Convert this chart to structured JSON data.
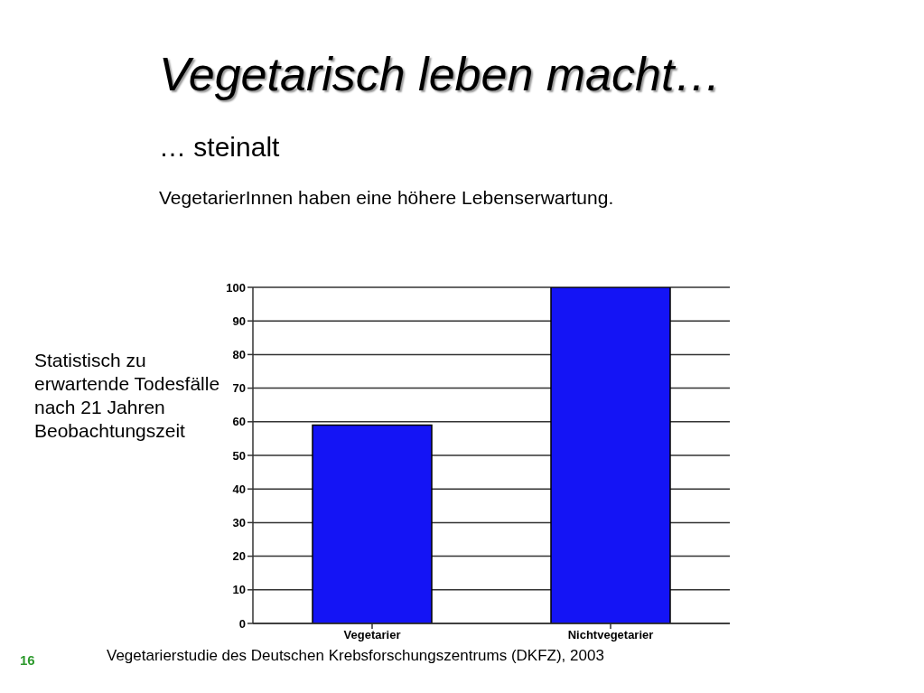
{
  "chart_data": {
    "type": "bar",
    "title": "Vegetarisch leben macht…",
    "subtitle": "… steinalt",
    "ylabel": "Statistisch zu erwartende Todesfälle nach 21 Jahren Beobachtungszeit",
    "annotations": [
      "VegetarierInnen haben eine höhere Lebenserwartung.",
      "Vegetarierstudie des Deutschen Krebsforschungszentrums (DKFZ), 2003",
      "16"
    ],
    "categories": [
      "Vegetarier",
      "Nichtvegetarier"
    ],
    "values": [
      59,
      100
    ],
    "color": "#1414f5",
    "ylim": [
      0,
      100
    ],
    "yticks": [
      0,
      10,
      20,
      30,
      40,
      50,
      60,
      70,
      80,
      90,
      100
    ],
    "grid": "y",
    "legend": false
  }
}
